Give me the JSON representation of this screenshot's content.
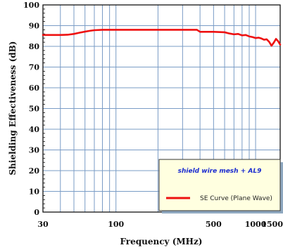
{
  "chart_data": {
    "type": "line",
    "xlabel": "Frequency (MHz)",
    "ylabel": "Shielding Effectiveness (dB)",
    "xscale": "log",
    "xlim": [
      30,
      1500
    ],
    "ylim": [
      0,
      100
    ],
    "grid": true,
    "x_tick_labels": [
      {
        "value": 30,
        "label": "30"
      },
      {
        "value": 100,
        "label": "100"
      },
      {
        "value": 500,
        "label": "500"
      },
      {
        "value": 1000,
        "label": "1000"
      },
      {
        "value": 1500,
        "label": "1500"
      }
    ],
    "x_gridlines": [
      30,
      40,
      50,
      60,
      70,
      80,
      90,
      100,
      200,
      300,
      400,
      500,
      600,
      700,
      800,
      900,
      1000,
      1500
    ],
    "y_ticks": [
      0,
      10,
      20,
      30,
      40,
      50,
      60,
      70,
      80,
      90,
      100
    ],
    "legend": {
      "placement": "bottom-right",
      "title": "shield wire mesh + AL9",
      "entries": [
        {
          "label": "SE Curve (Plane Wave)"
        }
      ]
    },
    "series": [
      {
        "color": "#ee1111",
        "x": [
          30,
          35,
          40,
          45,
          50,
          55,
          60,
          65,
          70,
          80,
          100,
          150,
          200,
          300,
          350,
          380,
          400,
          500,
          600,
          650,
          700,
          750,
          800,
          850,
          900,
          950,
          1000,
          1050,
          1100,
          1150,
          1200,
          1250,
          1300,
          1350,
          1400,
          1450,
          1500
        ],
        "y": [
          85.5,
          85.5,
          85.5,
          85.6,
          86,
          86.6,
          87.1,
          87.5,
          87.8,
          88,
          88,
          88,
          88,
          88,
          88,
          88,
          87,
          87,
          86.8,
          86.2,
          85.8,
          86,
          85.3,
          85.5,
          84.8,
          84.5,
          84,
          84.2,
          83.8,
          83.2,
          83.4,
          82.2,
          80.3,
          81.8,
          83.6,
          82.5,
          80.8
        ]
      }
    ]
  }
}
